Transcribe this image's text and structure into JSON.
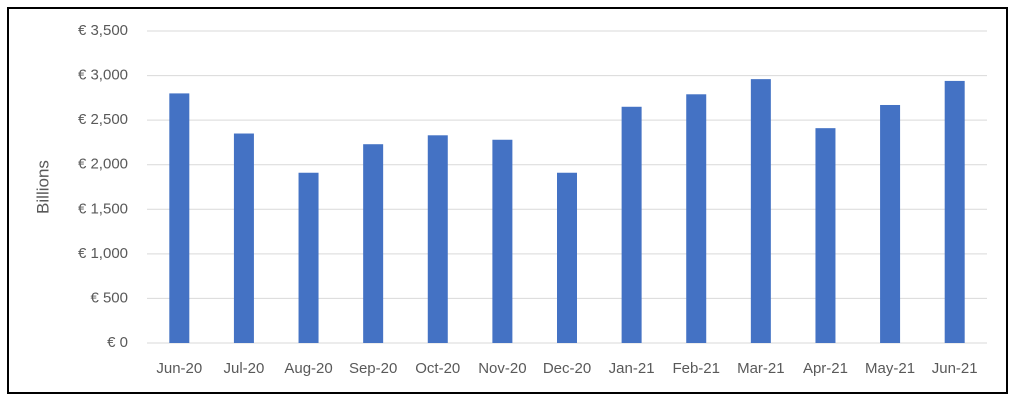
{
  "chart_data": {
    "type": "bar",
    "y_label": "Billions",
    "categories": [
      "Jun-20",
      "Jul-20",
      "Aug-20",
      "Sep-20",
      "Oct-20",
      "Nov-20",
      "Dec-20",
      "Jan-21",
      "Feb-21",
      "Mar-21",
      "Apr-21",
      "May-21",
      "Jun-21"
    ],
    "values": [
      2800,
      2350,
      1910,
      2230,
      2330,
      2280,
      1910,
      2650,
      2790,
      2960,
      2410,
      2670,
      2940
    ],
    "color": "#4472c4",
    "ylim": [
      0,
      3500
    ],
    "yticks": [
      {
        "value": 0,
        "label": "€ 0"
      },
      {
        "value": 500,
        "label": "€ 500"
      },
      {
        "value": 1000,
        "label": "€ 1,000"
      },
      {
        "value": 1500,
        "label": "€ 1,500"
      },
      {
        "value": 2000,
        "label": "€ 2,000"
      },
      {
        "value": 2500,
        "label": "€ 2,500"
      },
      {
        "value": 3000,
        "label": "€ 3,000"
      },
      {
        "value": 3500,
        "label": "€ 3,500"
      }
    ],
    "grid": true
  }
}
